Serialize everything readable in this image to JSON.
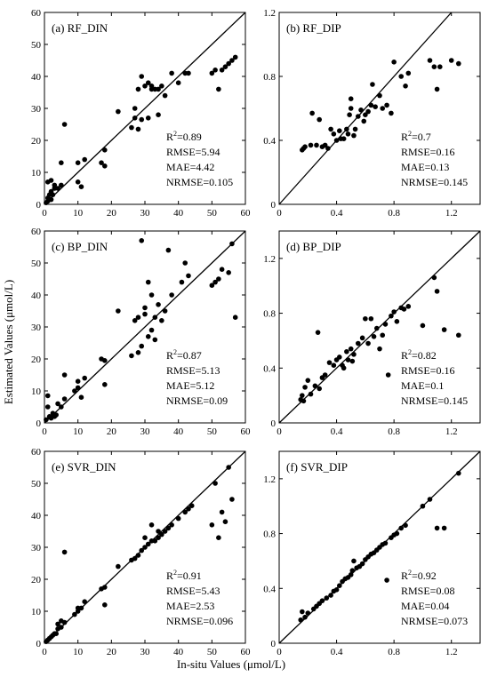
{
  "figure": {
    "ylabel": "Estimated Values (μmol/L)",
    "xlabel": "In-situ Values (μmol/L)"
  },
  "chart_data": [
    {
      "type": "scatter",
      "title": "(a) RF_DIN",
      "xlim": [
        0,
        60
      ],
      "ylim": [
        0,
        60
      ],
      "xticks": [
        0,
        10,
        20,
        30,
        40,
        50,
        60
      ],
      "yticks": [
        0,
        10,
        20,
        30,
        40,
        50,
        60
      ],
      "reference_line": "1:1",
      "stats": [
        "R²=0.89",
        "RMSE=5.94",
        "MAE=4.42",
        "NRMSE=0.105"
      ],
      "points": [
        [
          0.5,
          0.5
        ],
        [
          1,
          1
        ],
        [
          1,
          2
        ],
        [
          1.5,
          3
        ],
        [
          2,
          1.5
        ],
        [
          2,
          4
        ],
        [
          2.5,
          3
        ],
        [
          3,
          5
        ],
        [
          1,
          7
        ],
        [
          2,
          7.5
        ],
        [
          3,
          6
        ],
        [
          4,
          5
        ],
        [
          5,
          6
        ],
        [
          5,
          13
        ],
        [
          6,
          25
        ],
        [
          10,
          7
        ],
        [
          10,
          13
        ],
        [
          11,
          5.5
        ],
        [
          12,
          14
        ],
        [
          17,
          13
        ],
        [
          18,
          17
        ],
        [
          18,
          12
        ],
        [
          22,
          29
        ],
        [
          26,
          24
        ],
        [
          27,
          27
        ],
        [
          27,
          30
        ],
        [
          28,
          23.5
        ],
        [
          28,
          36
        ],
        [
          29,
          40
        ],
        [
          29,
          26.5
        ],
        [
          30,
          37
        ],
        [
          31,
          38
        ],
        [
          31,
          27
        ],
        [
          32,
          36
        ],
        [
          32,
          37
        ],
        [
          33,
          36
        ],
        [
          34,
          36
        ],
        [
          34,
          28
        ],
        [
          35,
          37
        ],
        [
          36,
          34
        ],
        [
          38,
          41
        ],
        [
          40,
          38
        ],
        [
          42,
          41
        ],
        [
          43,
          41
        ],
        [
          50,
          41
        ],
        [
          51,
          42
        ],
        [
          52,
          36
        ],
        [
          53,
          42
        ],
        [
          54,
          43
        ],
        [
          55,
          44
        ],
        [
          56,
          45
        ],
        [
          57,
          46
        ]
      ]
    },
    {
      "type": "scatter",
      "title": "(b) RF_DIP",
      "xlim": [
        0,
        1.4
      ],
      "ylim": [
        0,
        1.2
      ],
      "xticks": [
        0,
        0.4,
        0.8,
        1.2
      ],
      "yticks": [
        0,
        0.4,
        0.8,
        1.2
      ],
      "reference_line": "1:1",
      "stats": [
        "R²=0.7",
        "RMSE=0.16",
        "MAE=0.13",
        "NRMSE=0.145"
      ],
      "points": [
        [
          0.16,
          0.34
        ],
        [
          0.17,
          0.35
        ],
        [
          0.18,
          0.36
        ],
        [
          0.22,
          0.37
        ],
        [
          0.23,
          0.57
        ],
        [
          0.26,
          0.37
        ],
        [
          0.28,
          0.53
        ],
        [
          0.3,
          0.36
        ],
        [
          0.32,
          0.37
        ],
        [
          0.34,
          0.35
        ],
        [
          0.36,
          0.47
        ],
        [
          0.38,
          0.44
        ],
        [
          0.4,
          0.4
        ],
        [
          0.42,
          0.46
        ],
        [
          0.43,
          0.41
        ],
        [
          0.45,
          0.41
        ],
        [
          0.47,
          0.47
        ],
        [
          0.48,
          0.44
        ],
        [
          0.49,
          0.56
        ],
        [
          0.5,
          0.6
        ],
        [
          0.5,
          0.66
        ],
        [
          0.52,
          0.43
        ],
        [
          0.53,
          0.47
        ],
        [
          0.55,
          0.55
        ],
        [
          0.57,
          0.59
        ],
        [
          0.59,
          0.52
        ],
        [
          0.6,
          0.56
        ],
        [
          0.62,
          0.58
        ],
        [
          0.64,
          0.62
        ],
        [
          0.65,
          0.75
        ],
        [
          0.67,
          0.61
        ],
        [
          0.7,
          0.68
        ],
        [
          0.72,
          0.6
        ],
        [
          0.75,
          0.62
        ],
        [
          0.78,
          0.57
        ],
        [
          0.8,
          0.89
        ],
        [
          0.85,
          0.8
        ],
        [
          0.88,
          0.74
        ],
        [
          0.9,
          0.82
        ],
        [
          1.05,
          0.9
        ],
        [
          1.08,
          0.86
        ],
        [
          1.1,
          0.72
        ],
        [
          1.12,
          0.86
        ],
        [
          1.2,
          0.9
        ],
        [
          1.25,
          0.88
        ]
      ]
    },
    {
      "type": "scatter",
      "title": "(c) BP_DIN",
      "xlim": [
        0,
        60
      ],
      "ylim": [
        0,
        60
      ],
      "xticks": [
        0,
        10,
        20,
        30,
        40,
        50,
        60
      ],
      "yticks": [
        0,
        10,
        20,
        30,
        40,
        50,
        60
      ],
      "reference_line": "1:1",
      "stats": [
        "R²=0.87",
        "RMSE=5.13",
        "MAE=5.12",
        "NRMSE=0.09"
      ],
      "points": [
        [
          0.5,
          1
        ],
        [
          1,
          5
        ],
        [
          1,
          8.5
        ],
        [
          1.5,
          2
        ],
        [
          2,
          1.5
        ],
        [
          2.5,
          3
        ],
        [
          3,
          2
        ],
        [
          3.5,
          2.5
        ],
        [
          4,
          6
        ],
        [
          5,
          5
        ],
        [
          6,
          7.5
        ],
        [
          6,
          15
        ],
        [
          9,
          10
        ],
        [
          10,
          11
        ],
        [
          10,
          13
        ],
        [
          11,
          8
        ],
        [
          12,
          14
        ],
        [
          17,
          20
        ],
        [
          18,
          12
        ],
        [
          18,
          19.5
        ],
        [
          22,
          35
        ],
        [
          26,
          21
        ],
        [
          27,
          32
        ],
        [
          28,
          22
        ],
        [
          28,
          33
        ],
        [
          29,
          57
        ],
        [
          29,
          24
        ],
        [
          30,
          34
        ],
        [
          30,
          36
        ],
        [
          31,
          44
        ],
        [
          31,
          27
        ],
        [
          32,
          29
        ],
        [
          32,
          40
        ],
        [
          33,
          26
        ],
        [
          33,
          33
        ],
        [
          34,
          37
        ],
        [
          35,
          32
        ],
        [
          36,
          35
        ],
        [
          37,
          54
        ],
        [
          38,
          40
        ],
        [
          41,
          44
        ],
        [
          42,
          50
        ],
        [
          43,
          46
        ],
        [
          50,
          43
        ],
        [
          51,
          44
        ],
        [
          52,
          45
        ],
        [
          53,
          48
        ],
        [
          55,
          47
        ],
        [
          56,
          56
        ],
        [
          57,
          33
        ]
      ]
    },
    {
      "type": "scatter",
      "title": "(d) BP_DIP",
      "xlim": [
        0,
        1.4
      ],
      "ylim": [
        0,
        1.4
      ],
      "xticks": [
        0,
        0.4,
        0.8,
        1.2
      ],
      "yticks": [
        0,
        0.4,
        0.8,
        1.2
      ],
      "reference_line": "1:1",
      "stats": [
        "R²=0.82",
        "RMSE=0.16",
        "MAE=0.1",
        "NRMSE=0.145"
      ],
      "points": [
        [
          0.15,
          0.17
        ],
        [
          0.16,
          0.2
        ],
        [
          0.17,
          0.16
        ],
        [
          0.18,
          0.26
        ],
        [
          0.2,
          0.31
        ],
        [
          0.22,
          0.21
        ],
        [
          0.25,
          0.27
        ],
        [
          0.27,
          0.66
        ],
        [
          0.28,
          0.25
        ],
        [
          0.3,
          0.33
        ],
        [
          0.32,
          0.35
        ],
        [
          0.35,
          0.44
        ],
        [
          0.38,
          0.42
        ],
        [
          0.4,
          0.46
        ],
        [
          0.42,
          0.48
        ],
        [
          0.44,
          0.42
        ],
        [
          0.45,
          0.4
        ],
        [
          0.47,
          0.52
        ],
        [
          0.48,
          0.46
        ],
        [
          0.5,
          0.54
        ],
        [
          0.51,
          0.45
        ],
        [
          0.52,
          0.5
        ],
        [
          0.55,
          0.58
        ],
        [
          0.58,
          0.62
        ],
        [
          0.6,
          0.76
        ],
        [
          0.62,
          0.58
        ],
        [
          0.64,
          0.76
        ],
        [
          0.66,
          0.63
        ],
        [
          0.68,
          0.69
        ],
        [
          0.7,
          0.54
        ],
        [
          0.72,
          0.64
        ],
        [
          0.74,
          0.72
        ],
        [
          0.76,
          0.35
        ],
        [
          0.78,
          0.78
        ],
        [
          0.8,
          0.81
        ],
        [
          0.82,
          0.74
        ],
        [
          0.85,
          0.84
        ],
        [
          0.87,
          0.83
        ],
        [
          0.9,
          0.85
        ],
        [
          1.0,
          0.71
        ],
        [
          1.08,
          1.06
        ],
        [
          1.1,
          0.96
        ],
        [
          1.15,
          0.68
        ],
        [
          1.25,
          0.64
        ]
      ]
    },
    {
      "type": "scatter",
      "title": "(e) SVR_DIN",
      "xlim": [
        0,
        60
      ],
      "ylim": [
        0,
        60
      ],
      "xticks": [
        0,
        10,
        20,
        30,
        40,
        50,
        60
      ],
      "yticks": [
        0,
        10,
        20,
        30,
        40,
        50,
        60
      ],
      "reference_line": "1:1",
      "stats": [
        "R²=0.91",
        "RMSE=5.43",
        "MAE=2.53",
        "NRMSE=0.096"
      ],
      "points": [
        [
          0.5,
          0.5
        ],
        [
          1,
          1
        ],
        [
          1.5,
          1.5
        ],
        [
          2,
          2
        ],
        [
          2.5,
          2.5
        ],
        [
          3,
          3
        ],
        [
          3.5,
          3
        ],
        [
          4,
          4.5
        ],
        [
          4,
          6
        ],
        [
          5,
          5
        ],
        [
          5,
          7
        ],
        [
          6,
          6.5
        ],
        [
          6,
          28.5
        ],
        [
          9,
          9
        ],
        [
          10,
          10
        ],
        [
          10,
          11
        ],
        [
          11,
          11
        ],
        [
          12,
          13
        ],
        [
          17,
          17
        ],
        [
          18,
          17.5
        ],
        [
          18,
          12
        ],
        [
          22,
          24
        ],
        [
          26,
          26
        ],
        [
          27,
          26.5
        ],
        [
          28,
          27.5
        ],
        [
          29,
          29
        ],
        [
          30,
          30
        ],
        [
          30,
          33
        ],
        [
          31,
          31
        ],
        [
          32,
          32
        ],
        [
          32,
          37
        ],
        [
          33,
          32
        ],
        [
          34,
          33
        ],
        [
          34,
          35
        ],
        [
          35,
          34
        ],
        [
          36,
          35
        ],
        [
          37,
          36
        ],
        [
          38,
          37
        ],
        [
          40,
          39
        ],
        [
          42,
          41
        ],
        [
          43,
          42
        ],
        [
          44,
          43
        ],
        [
          50,
          37
        ],
        [
          51,
          50
        ],
        [
          52,
          33
        ],
        [
          53,
          41
        ],
        [
          54,
          38
        ],
        [
          55,
          55
        ],
        [
          56,
          45
        ]
      ]
    },
    {
      "type": "scatter",
      "title": "(f) SVR_DIP",
      "xlim": [
        0,
        1.4
      ],
      "ylim": [
        0,
        1.4
      ],
      "xticks": [
        0,
        0.4,
        0.8,
        1.2
      ],
      "yticks": [
        0,
        0.4,
        0.8,
        1.2
      ],
      "reference_line": "1:1",
      "stats": [
        "R²=0.92",
        "RMSE=0.08",
        "MAE=0.04",
        "NRMSE=0.073"
      ],
      "points": [
        [
          0.15,
          0.17
        ],
        [
          0.16,
          0.23
        ],
        [
          0.18,
          0.19
        ],
        [
          0.2,
          0.22
        ],
        [
          0.24,
          0.25
        ],
        [
          0.26,
          0.27
        ],
        [
          0.28,
          0.29
        ],
        [
          0.3,
          0.31
        ],
        [
          0.33,
          0.33
        ],
        [
          0.36,
          0.35
        ],
        [
          0.38,
          0.38
        ],
        [
          0.4,
          0.39
        ],
        [
          0.42,
          0.42
        ],
        [
          0.44,
          0.45
        ],
        [
          0.46,
          0.47
        ],
        [
          0.48,
          0.48
        ],
        [
          0.5,
          0.5
        ],
        [
          0.51,
          0.53
        ],
        [
          0.52,
          0.6
        ],
        [
          0.54,
          0.55
        ],
        [
          0.56,
          0.56
        ],
        [
          0.58,
          0.58
        ],
        [
          0.6,
          0.61
        ],
        [
          0.62,
          0.63
        ],
        [
          0.64,
          0.65
        ],
        [
          0.66,
          0.66
        ],
        [
          0.68,
          0.68
        ],
        [
          0.7,
          0.7
        ],
        [
          0.72,
          0.72
        ],
        [
          0.74,
          0.73
        ],
        [
          0.75,
          0.46
        ],
        [
          0.78,
          0.77
        ],
        [
          0.8,
          0.79
        ],
        [
          0.82,
          0.8
        ],
        [
          0.85,
          0.84
        ],
        [
          0.88,
          0.86
        ],
        [
          1.0,
          1.0
        ],
        [
          1.05,
          1.05
        ],
        [
          1.1,
          0.84
        ],
        [
          1.15,
          0.84
        ],
        [
          1.25,
          1.24
        ]
      ]
    }
  ]
}
